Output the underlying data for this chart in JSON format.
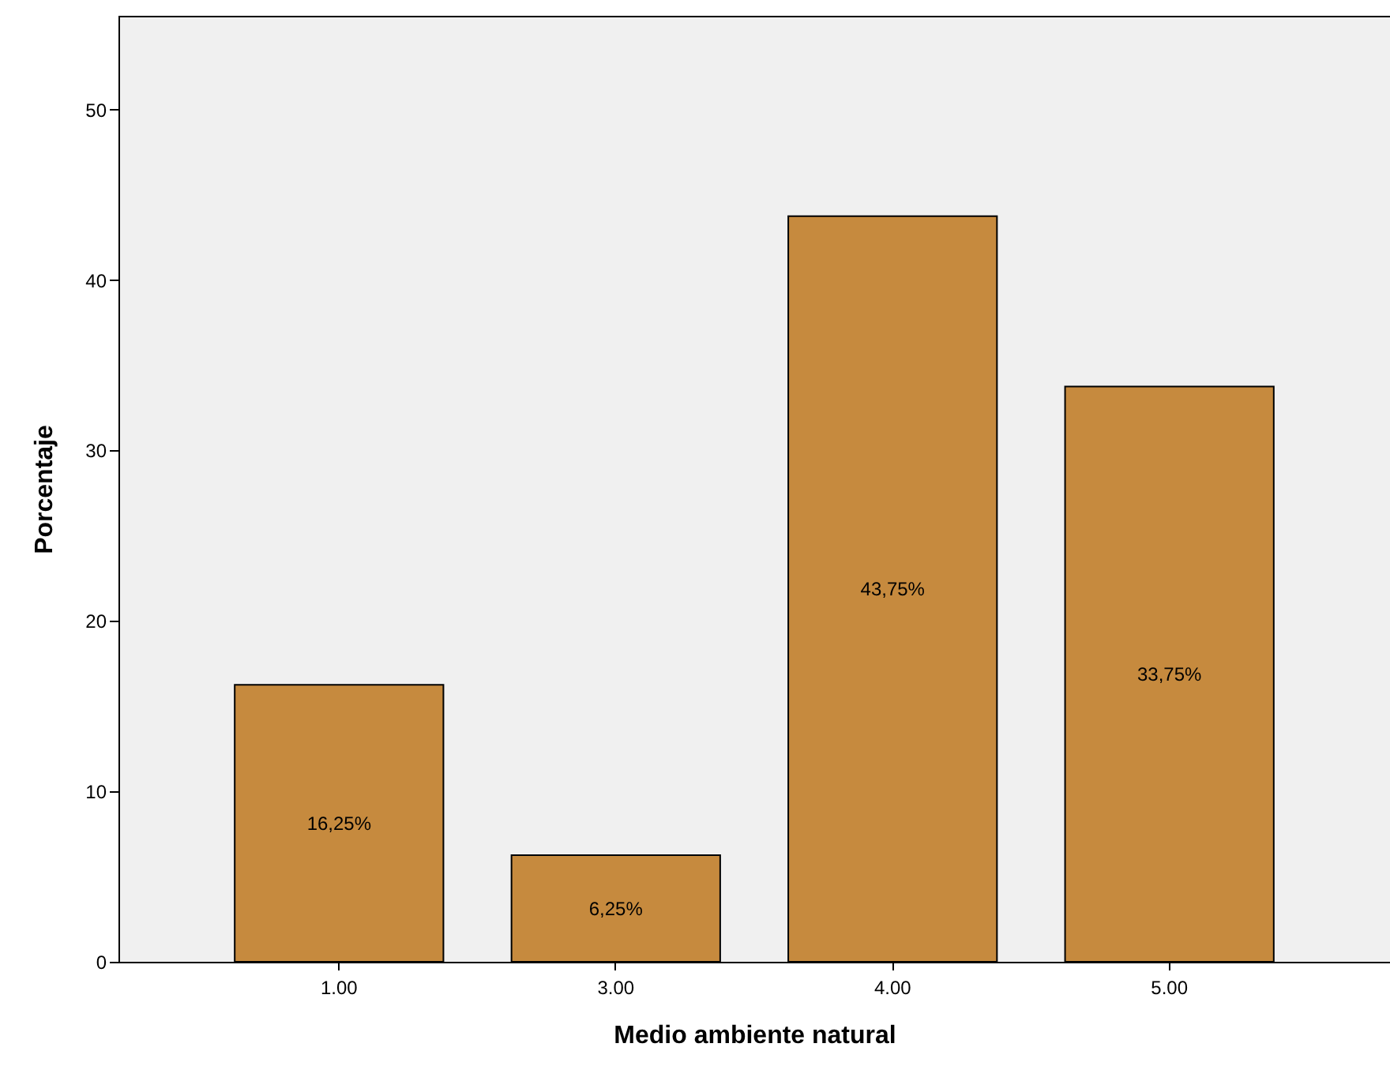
{
  "chart_data": {
    "type": "bar",
    "xlabel": "Medio ambiente natural",
    "ylabel": "Porcentaje",
    "categories": [
      "1.00",
      "3.00",
      "4.00",
      "5.00"
    ],
    "values": [
      16.25,
      6.25,
      43.75,
      33.75
    ],
    "value_labels": [
      "16,25%",
      "6,25%",
      "43,75%",
      "33,75%"
    ],
    "color": "#c68a3e",
    "ylim": [
      0,
      55.5
    ],
    "yticks": [
      0,
      10,
      20,
      30,
      40,
      50
    ],
    "grid": false
  }
}
